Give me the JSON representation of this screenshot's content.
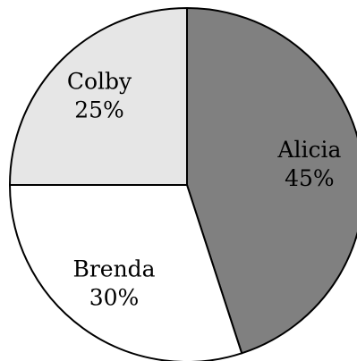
{
  "chart_data": {
    "type": "pie",
    "title": "",
    "slices": [
      {
        "label": "Alicia",
        "percent_label": "45%",
        "value": 45,
        "color": "#808080"
      },
      {
        "label": "Brenda",
        "percent_label": "30%",
        "value": 30,
        "color": "#ffffff"
      },
      {
        "label": "Colby",
        "percent_label": "25%",
        "value": 25,
        "color": "#e6e6e6"
      }
    ],
    "start_direction": "top",
    "direction": "clockwise"
  }
}
